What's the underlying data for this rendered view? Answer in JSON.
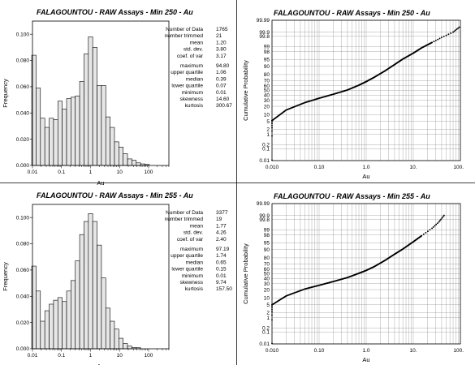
{
  "chart_data": [
    {
      "type": "bar",
      "title": "FALAGOUNTOU - RAW Assays - Min 250 - Au",
      "xlabel": "Au",
      "ylabel": "Frequency",
      "x_scale": "log",
      "x_tick_labels": [
        "0.01",
        "0.1",
        "1",
        "10",
        "100"
      ],
      "y_ticks": [
        "0.000",
        "0.020",
        "0.040",
        "0.060",
        "0.080",
        "0.100"
      ],
      "ylim": [
        0,
        0.11
      ],
      "bin_centers": [
        0.0112,
        0.0158,
        0.0224,
        0.0316,
        0.0447,
        0.0631,
        0.0891,
        0.126,
        0.178,
        0.251,
        0.355,
        0.501,
        0.708,
        1.0,
        1.41,
        2.0,
        2.82,
        3.98,
        5.62,
        7.94,
        11.2,
        15.8,
        22.4,
        31.6,
        44.7,
        63.1,
        89.1
      ],
      "values": [
        0.084,
        0.059,
        0.036,
        0.029,
        0.036,
        0.035,
        0.049,
        0.043,
        0.051,
        0.052,
        0.053,
        0.064,
        0.085,
        0.098,
        0.09,
        0.061,
        0.061,
        0.037,
        0.029,
        0.018,
        0.014,
        0.009,
        0.005,
        0.004,
        0.002,
        0.0012,
        0.0008
      ],
      "stats": [
        [
          "Number of Data",
          "1765"
        ],
        [
          "number trimmed",
          "21"
        ],
        [
          "mean",
          "1.20"
        ],
        [
          "std. dev.",
          "3.80"
        ],
        [
          "coef. of var",
          "3.17"
        ],
        [
          "maximum",
          "94.80"
        ],
        [
          "upper quartile",
          "1.06"
        ],
        [
          "median",
          "0.39"
        ],
        [
          "lower quartile",
          "0.07"
        ],
        [
          "minimum",
          "0.01"
        ],
        [
          "skewness",
          "14.60"
        ],
        [
          "kurtosis",
          "300.67"
        ]
      ]
    },
    {
      "type": "scatter",
      "title": "FALAGOUNTOU - RAW Assays - Min 250 - Au",
      "xlabel": "Au",
      "ylabel": "Cumulative Probability",
      "x_scale": "log",
      "y_scale": "probability",
      "x_tick_labels": [
        "0.010",
        "0.10",
        "1.0",
        "10.",
        "100."
      ],
      "y_ticks": [
        "0.01",
        "0.1",
        "0.2",
        "1",
        "2",
        "5",
        "10",
        "20",
        "30",
        "40",
        "50",
        "60",
        "70",
        "80",
        "90",
        "95",
        "98",
        "99",
        "99.8",
        "99.9",
        "99.99"
      ],
      "x": [
        0.01,
        0.02,
        0.05,
        0.1,
        0.2,
        0.4,
        0.7,
        1.0,
        1.5,
        2.5,
        4.0,
        6.0,
        10.0,
        15.0,
        25.0,
        40.0,
        70.0,
        95.0
      ],
      "y": [
        5.5,
        15,
        26,
        34,
        42,
        51,
        61,
        68,
        76,
        85,
        91.5,
        95.2,
        97.6,
        98.8,
        99.45,
        99.75,
        99.9,
        99.96
      ]
    },
    {
      "type": "bar",
      "title": "FALAGOUNTOU - RAW Assays - Min 255 - Au",
      "xlabel": "Au",
      "ylabel": "Frequency",
      "x_scale": "log",
      "x_tick_labels": [
        "0.01",
        "0.1",
        "1",
        "10",
        "100"
      ],
      "y_ticks": [
        "0.000",
        "0.020",
        "0.040",
        "0.060",
        "0.080",
        "0.100"
      ],
      "ylim": [
        0,
        0.11
      ],
      "bin_centers": [
        0.0112,
        0.0158,
        0.0224,
        0.0316,
        0.0447,
        0.0631,
        0.0891,
        0.126,
        0.178,
        0.251,
        0.355,
        0.501,
        0.708,
        1.0,
        1.41,
        2.0,
        2.82,
        3.98,
        5.62,
        7.94,
        11.2,
        15.8,
        22.4,
        31.6,
        44.7,
        63.1,
        89.1
      ],
      "values": [
        0.063,
        0.044,
        0.021,
        0.029,
        0.034,
        0.037,
        0.039,
        0.036,
        0.044,
        0.052,
        0.067,
        0.087,
        0.097,
        0.103,
        0.097,
        0.079,
        0.054,
        0.031,
        0.021,
        0.015,
        0.008,
        0.004,
        0.002,
        0.001,
        0.0008,
        0,
        0
      ],
      "stats": [
        [
          "Number of Data",
          "3377"
        ],
        [
          "number trimmed",
          "19"
        ],
        [
          "mean",
          "1.77"
        ],
        [
          "std. dev.",
          "4.26"
        ],
        [
          "coef. of var",
          "2.40"
        ],
        [
          "maximum",
          "97.19"
        ],
        [
          "upper quartile",
          "1.74"
        ],
        [
          "median",
          "0.65"
        ],
        [
          "lower quartile",
          "0.15"
        ],
        [
          "minimum",
          "0.01"
        ],
        [
          "skewness",
          "9.74"
        ],
        [
          "kurtosis",
          "157.50"
        ]
      ]
    },
    {
      "type": "scatter",
      "title": "FALAGOUNTOU - RAW Assays - Min 255 - Au",
      "xlabel": "Au",
      "ylabel": "Cumulative Probability",
      "x_scale": "log",
      "y_scale": "probability",
      "x_tick_labels": [
        "0.010",
        "0.10",
        "1.0",
        "10.",
        "100."
      ],
      "y_ticks": [
        "0.01",
        "0.1",
        "0.2",
        "1",
        "2",
        "5",
        "10",
        "20",
        "30",
        "40",
        "50",
        "60",
        "70",
        "80",
        "90",
        "95",
        "98",
        "99",
        "99.8",
        "99.9",
        "99.99"
      ],
      "x": [
        0.01,
        0.02,
        0.05,
        0.1,
        0.2,
        0.4,
        0.7,
        1.0,
        1.5,
        2.5,
        4.0,
        6.0,
        10.0,
        15.0,
        25.0,
        35.0,
        45.0
      ],
      "y": [
        5,
        12,
        21,
        27,
        34,
        42,
        51,
        57,
        65,
        76,
        85,
        90.5,
        95.5,
        97.8,
        99.2,
        99.7,
        99.9
      ]
    }
  ]
}
